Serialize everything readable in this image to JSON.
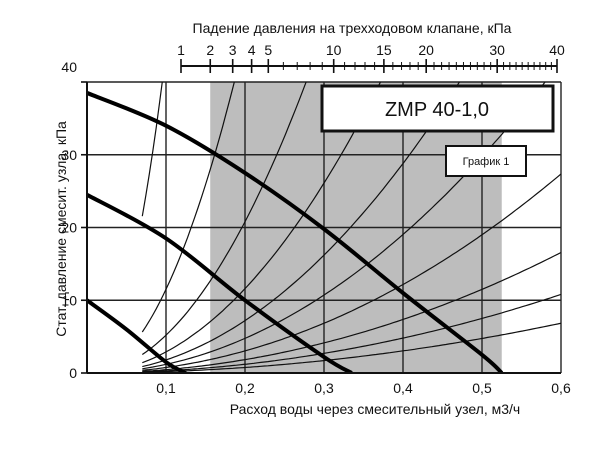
{
  "chart_data": {
    "type": "line",
    "model_label": "ZMP 40-1,0",
    "chart_label": "График 1",
    "xlabel": "Расход воды через смесительный узел, м3/ч",
    "ylabel": "Стат. давление смесит. узла, кПа",
    "top_axis_label": "Падение давления на трехходовом клапане, кПа",
    "xlim": [
      0,
      0.6
    ],
    "ylim": [
      0,
      40
    ],
    "x_ticks": [
      0.1,
      0.2,
      0.3,
      0.4,
      0.5,
      0.6
    ],
    "x_tick_labels": [
      "0,1",
      "0,2",
      "0,3",
      "0,4",
      "0,5",
      "0,6"
    ],
    "y_ticks": [
      0,
      10,
      20,
      30,
      40
    ],
    "y_tick_labels": [
      "0",
      "10",
      "20",
      "30",
      "40"
    ],
    "top_axis": {
      "scale": "sqrt",
      "range": [
        1,
        40
      ],
      "ticks": [
        1,
        2,
        3,
        4,
        5,
        10,
        15,
        20,
        30,
        40
      ],
      "tick_labels": [
        "1",
        "2",
        "3",
        "4",
        "5",
        "10",
        "15",
        "20",
        "30",
        "40"
      ]
    },
    "shaded_region_x": [
      0.156,
      0.525
    ],
    "grid": true,
    "pump_curves": [
      {
        "x": [
          0,
          0.1,
          0.2,
          0.3,
          0.4,
          0.5,
          0.525
        ],
        "y": [
          38.5,
          34,
          27.5,
          19.8,
          11,
          2.5,
          0
        ]
      },
      {
        "x": [
          0,
          0.1,
          0.2,
          0.3,
          0.335
        ],
        "y": [
          24.5,
          18.5,
          10,
          2.2,
          0
        ]
      },
      {
        "x": [
          0,
          0.05,
          0.1,
          0.125
        ],
        "y": [
          10,
          6,
          1.5,
          0
        ]
      }
    ],
    "resistance_curves": [
      {
        "name": "",
        "coefficient": 4400
      },
      {
        "name": "",
        "coefficient": 1150
      },
      {
        "name": "",
        "coefficient": 520
      },
      {
        "name": "",
        "coefficient": 290
      },
      {
        "name": "",
        "coefficient": 180
      },
      {
        "name": "",
        "coefficient": 119
      },
      {
        "name": "",
        "coefficient": 76
      },
      {
        "name": "",
        "coefficient": 46
      },
      {
        "name": "",
        "coefficient": 30
      },
      {
        "name": "",
        "coefficient": 19
      }
    ],
    "resistance_curve_min_x": 0.07
  }
}
